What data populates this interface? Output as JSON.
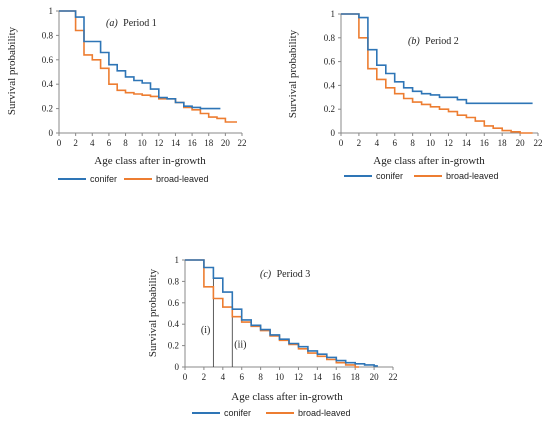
{
  "chart_data": [
    {
      "type": "line",
      "step": true,
      "title": "(a) Period 1",
      "title_letter": "(a)",
      "title_text": "Period 1",
      "xlabel": "Age class after in-growth",
      "ylabel": "Survival probability",
      "xlim": [
        0,
        22
      ],
      "ylim": [
        0,
        1
      ],
      "xticks": [
        0,
        2,
        4,
        6,
        8,
        10,
        12,
        14,
        16,
        18,
        20,
        22
      ],
      "yticks": [
        0,
        0.2,
        0.4,
        0.6,
        0.8,
        1
      ],
      "grid": false,
      "legend": "bottom",
      "series": [
        {
          "name": "conifer",
          "color": "#2e75b6",
          "x": [
            0,
            2,
            3,
            5,
            6,
            7,
            8,
            9,
            10,
            11,
            12,
            13,
            14,
            15,
            16,
            17,
            18,
            19
          ],
          "y": [
            1.0,
            0.95,
            0.75,
            0.66,
            0.56,
            0.51,
            0.46,
            0.43,
            0.41,
            0.36,
            0.29,
            0.28,
            0.25,
            0.22,
            0.21,
            0.2,
            0.2,
            0.2
          ]
        },
        {
          "name": "broad-leaved",
          "color": "#ed7d31",
          "x": [
            0,
            2,
            3,
            4,
            5,
            6,
            7,
            8,
            9,
            10,
            11,
            12,
            13,
            14,
            15,
            16,
            17,
            18,
            19,
            20,
            21
          ],
          "y": [
            1.0,
            0.84,
            0.64,
            0.6,
            0.53,
            0.4,
            0.35,
            0.33,
            0.32,
            0.31,
            0.3,
            0.28,
            0.28,
            0.25,
            0.21,
            0.19,
            0.16,
            0.13,
            0.12,
            0.09,
            0.09
          ]
        }
      ]
    },
    {
      "type": "line",
      "step": true,
      "title": "(b) Period 2",
      "title_letter": "(b)",
      "title_text": "Period 2",
      "xlabel": "Age class after in-growth",
      "ylabel": "Survival probability",
      "xlim": [
        0,
        22
      ],
      "ylim": [
        0,
        1
      ],
      "xticks": [
        0,
        2,
        4,
        6,
        8,
        10,
        12,
        14,
        16,
        18,
        20,
        22
      ],
      "yticks": [
        0,
        0.2,
        0.4,
        0.6,
        0.8,
        1
      ],
      "grid": false,
      "legend": "bottom",
      "series": [
        {
          "name": "conifer",
          "color": "#2e75b6",
          "x": [
            0,
            2,
            3,
            4,
            5,
            6,
            7,
            8,
            9,
            10,
            11,
            12,
            13,
            14,
            21
          ],
          "y": [
            1.0,
            0.97,
            0.7,
            0.57,
            0.5,
            0.43,
            0.38,
            0.35,
            0.33,
            0.32,
            0.3,
            0.3,
            0.28,
            0.25,
            0.25
          ]
        },
        {
          "name": "broad-leaved",
          "color": "#ed7d31",
          "x": [
            0,
            2,
            3,
            4,
            5,
            6,
            7,
            8,
            9,
            10,
            11,
            12,
            13,
            14,
            15,
            16,
            17,
            18,
            19,
            20,
            21
          ],
          "y": [
            1.0,
            0.8,
            0.54,
            0.45,
            0.38,
            0.33,
            0.29,
            0.26,
            0.24,
            0.22,
            0.2,
            0.18,
            0.15,
            0.13,
            0.1,
            0.06,
            0.04,
            0.02,
            0.01,
            0.0,
            0.0
          ]
        }
      ]
    },
    {
      "type": "line",
      "step": true,
      "title": "(c) Period 3",
      "title_letter": "(c)",
      "title_text": "Period 3",
      "xlabel": "Age class after in-growth",
      "ylabel": "Survival probability",
      "xlim": [
        0,
        22
      ],
      "ylim": [
        0,
        1
      ],
      "xticks": [
        0,
        2,
        4,
        6,
        8,
        10,
        12,
        14,
        16,
        18,
        20,
        22
      ],
      "yticks": [
        0,
        0.2,
        0.4,
        0.6,
        0.8,
        1
      ],
      "grid": false,
      "legend": "bottom",
      "annotations": [
        {
          "label": "(i)",
          "x": 3
        },
        {
          "label": "(ii)",
          "x": 5
        }
      ],
      "series": [
        {
          "name": "conifer",
          "color": "#2e75b6",
          "x": [
            0,
            2,
            3,
            4,
            5,
            6,
            7,
            8,
            9,
            10,
            11,
            12,
            13,
            14,
            15,
            16,
            17,
            18,
            19,
            20
          ],
          "y": [
            1.0,
            0.93,
            0.83,
            0.7,
            0.54,
            0.44,
            0.39,
            0.35,
            0.3,
            0.26,
            0.22,
            0.19,
            0.15,
            0.12,
            0.09,
            0.06,
            0.04,
            0.03,
            0.02,
            0.01
          ]
        },
        {
          "name": "broad-leaved",
          "color": "#ed7d31",
          "x": [
            0,
            2,
            3,
            4,
            5,
            6,
            7,
            8,
            9,
            10,
            11,
            12,
            13,
            14,
            15,
            16,
            17,
            18
          ],
          "y": [
            1.0,
            0.75,
            0.64,
            0.56,
            0.47,
            0.42,
            0.38,
            0.34,
            0.29,
            0.25,
            0.21,
            0.17,
            0.13,
            0.1,
            0.07,
            0.04,
            0.02,
            0.0
          ]
        }
      ]
    }
  ]
}
